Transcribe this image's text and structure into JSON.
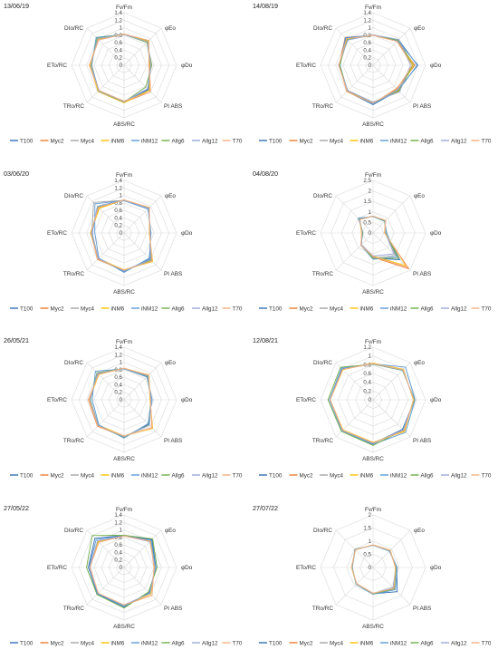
{
  "legend": [
    "T100",
    "Myc2",
    "Myc4",
    "iNM6",
    "iNM12",
    "Allg6",
    "Allg12",
    "T70"
  ],
  "colors": [
    "#2f6eb5",
    "#ed7d31",
    "#a5a5a5",
    "#ffc000",
    "#5b9bd5",
    "#70ad47",
    "#9aa7d6",
    "#f4b183"
  ],
  "axes": [
    "Fv/Fm",
    "φEo",
    "φDo",
    "PI ABS",
    "ABS/RC",
    "TRo/RC",
    "ETo/RC",
    "DIo/RC"
  ],
  "chart_data": [
    {
      "type": "radar",
      "title": "13/06/19",
      "ylim": [
        0,
        1.4
      ],
      "ticks": [
        "0",
        "0.2",
        "0.4",
        "0.6",
        "0.8",
        "1",
        "1.2",
        "1.4"
      ],
      "series": [
        {
          "name": "T100",
          "values": [
            0.82,
            0.9,
            0.68,
            0.92,
            0.96,
            0.95,
            0.88,
            1.0
          ]
        },
        {
          "name": "Myc2",
          "values": [
            0.83,
            0.93,
            0.67,
            1.0,
            0.98,
            0.97,
            0.92,
            0.98
          ]
        },
        {
          "name": "Myc4",
          "values": [
            0.83,
            0.92,
            0.68,
            0.95,
            0.97,
            0.96,
            0.9,
            0.99
          ]
        },
        {
          "name": "iNM6",
          "values": [
            0.83,
            0.9,
            0.7,
            0.95,
            1.0,
            0.98,
            0.91,
            0.99
          ]
        },
        {
          "name": "iNM12",
          "values": [
            0.82,
            0.88,
            0.72,
            0.9,
            0.97,
            0.96,
            0.86,
            1.05
          ]
        },
        {
          "name": "Allg6",
          "values": [
            0.82,
            0.86,
            0.74,
            0.82,
            0.98,
            0.97,
            0.87,
            1.02
          ]
        },
        {
          "name": "Allg12",
          "values": [
            0.82,
            0.88,
            0.72,
            0.88,
            0.97,
            0.96,
            0.88,
            1.0
          ]
        },
        {
          "name": "T70",
          "values": [
            0.83,
            0.94,
            0.66,
            1.0,
            0.95,
            0.95,
            0.93,
            0.95
          ]
        }
      ]
    },
    {
      "type": "radar",
      "title": "14/08/19",
      "ylim": [
        0,
        1.4
      ],
      "ticks": [
        "0",
        "0.2",
        "0.4",
        "0.6",
        "0.8",
        "1",
        "1.2",
        "1.4"
      ],
      "series": [
        {
          "name": "T100",
          "values": [
            0.8,
            0.96,
            1.18,
            0.95,
            1.05,
            0.98,
            0.88,
            1.02
          ]
        },
        {
          "name": "Myc2",
          "values": [
            0.8,
            0.9,
            1.12,
            0.88,
            1.02,
            0.99,
            0.9,
            1.05
          ]
        },
        {
          "name": "Myc4",
          "values": [
            0.81,
            0.93,
            1.1,
            0.92,
            1.0,
            0.97,
            0.9,
            1.0
          ]
        },
        {
          "name": "iNM6",
          "values": [
            0.81,
            0.94,
            1.08,
            0.96,
            0.99,
            0.96,
            0.92,
            0.98
          ]
        },
        {
          "name": "iNM12",
          "values": [
            0.8,
            0.92,
            1.2,
            0.93,
            1.03,
            0.97,
            0.88,
            1.04
          ]
        },
        {
          "name": "Allg6",
          "values": [
            0.8,
            0.95,
            1.05,
            0.98,
            1.0,
            0.96,
            0.89,
            0.97
          ]
        },
        {
          "name": "Allg12",
          "values": [
            0.81,
            0.97,
            1.0,
            1.0,
            0.98,
            0.95,
            0.92,
            0.95
          ]
        },
        {
          "name": "T70",
          "values": [
            0.8,
            0.9,
            1.04,
            0.9,
            1.01,
            0.98,
            0.91,
            1.0
          ]
        }
      ]
    },
    {
      "type": "radar",
      "title": "03/06/20",
      "ylim": [
        0,
        1.4
      ],
      "ticks": [
        "0",
        "0.2",
        "0.4",
        "0.6",
        "0.8",
        "1",
        "1.2",
        "1.4"
      ],
      "series": [
        {
          "name": "T100",
          "values": [
            0.88,
            0.92,
            0.7,
            0.98,
            1.02,
            0.98,
            0.85,
            1.0
          ]
        },
        {
          "name": "Myc2",
          "values": [
            0.88,
            0.95,
            0.68,
            1.05,
            1.0,
            1.0,
            0.88,
            0.95
          ]
        },
        {
          "name": "Myc4",
          "values": [
            0.87,
            0.93,
            0.7,
            1.0,
            1.0,
            0.96,
            0.86,
            1.15
          ]
        },
        {
          "name": "iNM6",
          "values": [
            0.88,
            0.96,
            0.67,
            1.08,
            0.98,
            0.97,
            0.9,
            0.93
          ]
        },
        {
          "name": "iNM12",
          "values": [
            0.86,
            0.9,
            0.72,
            0.95,
            1.05,
            0.95,
            0.78,
            1.1
          ]
        },
        {
          "name": "Allg6",
          "values": [
            0.87,
            0.94,
            0.69,
            1.02,
            1.0,
            0.98,
            0.88,
            0.98
          ]
        },
        {
          "name": "Allg12",
          "values": [
            0.87,
            0.93,
            0.7,
            1.0,
            1.01,
            0.97,
            0.86,
            1.0
          ]
        },
        {
          "name": "T70",
          "values": [
            0.88,
            0.96,
            0.68,
            1.06,
            0.99,
            0.99,
            0.89,
            0.96
          ]
        }
      ]
    },
    {
      "type": "radar",
      "title": "04/08/20",
      "ylim": [
        0,
        2.5
      ],
      "ticks": [
        "0",
        "0.5",
        "1",
        "1.5",
        "2",
        "2.5"
      ],
      "series": [
        {
          "name": "T100",
          "values": [
            0.8,
            0.8,
            0.6,
            1.8,
            1.2,
            0.8,
            0.5,
            0.9
          ]
        },
        {
          "name": "Myc2",
          "values": [
            0.8,
            0.82,
            0.55,
            2.4,
            1.15,
            0.82,
            0.52,
            0.92
          ]
        },
        {
          "name": "Myc4",
          "values": [
            0.8,
            0.8,
            0.62,
            1.5,
            1.2,
            0.8,
            0.5,
            0.95
          ]
        },
        {
          "name": "iNM6",
          "values": [
            0.8,
            0.85,
            0.55,
            2.2,
            1.1,
            0.8,
            0.55,
            0.9
          ]
        },
        {
          "name": "iNM12",
          "values": [
            0.78,
            0.78,
            0.65,
            1.6,
            1.25,
            0.82,
            0.48,
            1.0
          ]
        },
        {
          "name": "Allg6",
          "values": [
            0.8,
            0.8,
            0.6,
            1.7,
            1.2,
            0.8,
            0.5,
            0.92
          ]
        },
        {
          "name": "Allg12",
          "values": [
            0.8,
            0.82,
            0.58,
            1.4,
            1.1,
            0.78,
            0.52,
            0.9
          ]
        },
        {
          "name": "T70",
          "values": [
            0.8,
            0.85,
            0.56,
            2.3,
            1.12,
            0.82,
            0.54,
            0.9
          ]
        }
      ]
    },
    {
      "type": "radar",
      "title": "26/05/21",
      "ylim": [
        0,
        1.4
      ],
      "ticks": [
        "0",
        "0.2",
        "0.4",
        "0.6",
        "0.8",
        "1",
        "1.2",
        "1.4"
      ],
      "series": [
        {
          "name": "T100",
          "values": [
            0.83,
            0.88,
            0.72,
            0.92,
            1.0,
            0.98,
            0.9,
            1.0
          ]
        },
        {
          "name": "Myc2",
          "values": [
            0.84,
            0.92,
            0.7,
            1.05,
            0.97,
            1.0,
            0.95,
            0.96
          ]
        },
        {
          "name": "Myc4",
          "values": [
            0.83,
            0.9,
            0.72,
            0.95,
            0.98,
            0.97,
            0.92,
            0.98
          ]
        },
        {
          "name": "iNM6",
          "values": [
            0.84,
            0.94,
            0.69,
            1.08,
            0.96,
            0.96,
            0.93,
            0.95
          ]
        },
        {
          "name": "iNM12",
          "values": [
            0.82,
            0.86,
            0.75,
            0.9,
            1.02,
            0.95,
            0.85,
            1.08
          ]
        },
        {
          "name": "Allg6",
          "values": [
            0.83,
            0.89,
            0.72,
            0.95,
            1.0,
            0.97,
            0.9,
            1.02
          ]
        },
        {
          "name": "Allg12",
          "values": [
            0.83,
            0.9,
            0.72,
            0.96,
            0.99,
            0.97,
            0.91,
            1.0
          ]
        },
        {
          "name": "T70",
          "values": [
            0.84,
            0.93,
            0.7,
            1.06,
            0.96,
            0.99,
            0.94,
            0.96
          ]
        }
      ]
    },
    {
      "type": "radar",
      "title": "12/08/21",
      "ylim": [
        0,
        1.2
      ],
      "ticks": [
        "0",
        "0.2",
        "0.4",
        "0.6",
        "0.8",
        "1",
        "1.2"
      ],
      "series": [
        {
          "name": "T100",
          "values": [
            0.82,
            0.95,
            0.95,
            0.95,
            1.0,
            1.0,
            1.0,
            1.0
          ]
        },
        {
          "name": "Myc2",
          "values": [
            0.83,
            0.97,
            0.93,
            1.0,
            0.98,
            0.98,
            0.98,
            0.98
          ]
        },
        {
          "name": "Myc4",
          "values": [
            0.82,
            0.96,
            0.94,
            0.98,
            0.99,
            0.99,
            0.99,
            0.99
          ]
        },
        {
          "name": "iNM6",
          "values": [
            0.84,
            0.98,
            0.92,
            1.02,
            0.97,
            0.97,
            0.98,
            0.97
          ]
        },
        {
          "name": "iNM12",
          "values": [
            0.82,
            1.05,
            0.96,
            1.05,
            1.02,
            1.0,
            1.0,
            1.02
          ]
        },
        {
          "name": "Allg6",
          "values": [
            0.81,
            0.95,
            0.95,
            0.98,
            1.04,
            1.02,
            1.03,
            1.05
          ]
        },
        {
          "name": "Allg12",
          "values": [
            0.82,
            0.96,
            0.94,
            0.97,
            0.99,
            0.99,
            0.99,
            0.99
          ]
        },
        {
          "name": "T70",
          "values": [
            0.83,
            0.97,
            0.93,
            1.0,
            0.98,
            0.98,
            0.98,
            0.98
          ]
        }
      ]
    },
    {
      "type": "radar",
      "title": "27/05/22",
      "ylim": [
        0,
        1.4
      ],
      "ticks": [
        "0",
        "0.2",
        "0.4",
        "0.6",
        "0.8",
        "1",
        "1.2",
        "1.4"
      ],
      "series": [
        {
          "name": "T100",
          "values": [
            0.85,
            1.05,
            0.85,
            0.95,
            1.05,
            1.0,
            0.95,
            1.1
          ]
        },
        {
          "name": "Myc2",
          "values": [
            0.84,
            1.0,
            0.8,
            1.05,
            1.0,
            0.98,
            0.92,
            0.95
          ]
        },
        {
          "name": "Myc4",
          "values": [
            0.84,
            0.98,
            0.82,
            0.98,
            1.0,
            0.98,
            0.9,
            1.0
          ]
        },
        {
          "name": "iNM6",
          "values": [
            0.85,
            1.0,
            0.82,
            1.0,
            1.0,
            0.98,
            0.93,
            0.98
          ]
        },
        {
          "name": "iNM12",
          "values": [
            0.85,
            1.02,
            0.84,
            0.96,
            1.03,
            0.99,
            0.94,
            1.05
          ]
        },
        {
          "name": "Allg6",
          "values": [
            0.86,
            1.08,
            0.88,
            0.92,
            1.08,
            1.02,
            1.0,
            1.2
          ]
        },
        {
          "name": "Allg12",
          "values": [
            0.84,
            0.97,
            0.83,
            0.98,
            1.0,
            0.98,
            0.92,
            1.0
          ]
        },
        {
          "name": "T70",
          "values": [
            0.84,
            0.99,
            0.8,
            1.05,
            1.0,
            0.97,
            0.91,
            0.95
          ]
        }
      ]
    },
    {
      "type": "radar",
      "title": "27/07/22",
      "ylim": [
        0,
        2
      ],
      "ticks": [
        "0",
        "0.5",
        "1",
        "1.5",
        "2"
      ],
      "series": [
        {
          "name": "T100",
          "values": [
            0.85,
            0.9,
            0.9,
            1.3,
            1.0,
            0.9,
            0.8,
            0.95
          ]
        },
        {
          "name": "Myc2",
          "values": [
            0.86,
            0.92,
            0.85,
            1.15,
            0.98,
            0.88,
            0.82,
            0.95
          ]
        },
        {
          "name": "Myc4",
          "values": [
            0.85,
            0.9,
            0.88,
            1.1,
            1.0,
            0.9,
            0.8,
            0.96
          ]
        },
        {
          "name": "iNM6",
          "values": [
            0.86,
            0.93,
            0.85,
            1.12,
            0.98,
            0.89,
            0.82,
            0.95
          ]
        },
        {
          "name": "iNM12",
          "values": [
            0.84,
            0.88,
            0.92,
            1.2,
            1.02,
            0.91,
            0.79,
            0.98
          ]
        },
        {
          "name": "Allg6",
          "values": [
            0.85,
            0.9,
            0.88,
            1.15,
            1.0,
            0.9,
            0.8,
            0.97
          ]
        },
        {
          "name": "Allg12",
          "values": [
            0.85,
            0.91,
            0.87,
            1.08,
            0.99,
            0.89,
            0.81,
            0.96
          ]
        },
        {
          "name": "T70",
          "values": [
            0.86,
            0.92,
            0.86,
            1.12,
            0.98,
            0.88,
            0.82,
            0.95
          ]
        }
      ]
    }
  ]
}
